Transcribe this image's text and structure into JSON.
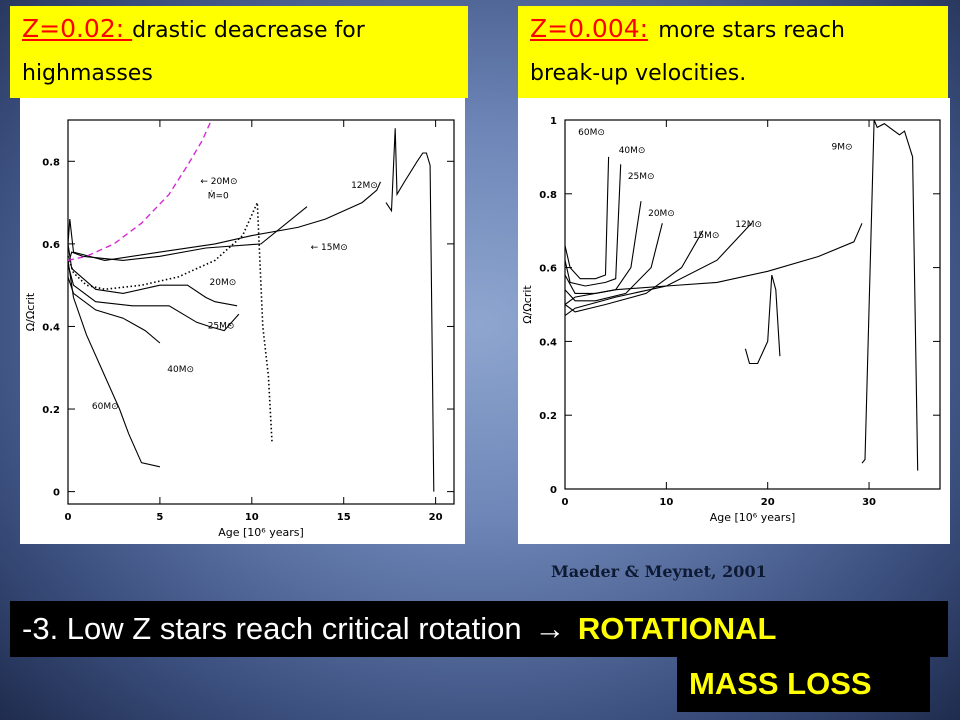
{
  "left_header": {
    "z_label": "Z=0.02: ",
    "desc_line1": "drastic deacrease for",
    "desc_line2": "highmasses"
  },
  "right_header": {
    "z_label": "Z=0.004:",
    "desc_line1": "more stars reach",
    "desc_line2": "break-up velocities."
  },
  "credit": "Maeder  &  Meynet,  2001",
  "banner": {
    "text": "-3. Low Z stars reach critical rotation",
    "arrow": "→",
    "highlight": "ROTATIONAL"
  },
  "bottom": {
    "text": "MASS  LOSS"
  },
  "chart_data": [
    {
      "type": "line",
      "title": "",
      "xlabel": "Age [10⁶ years]",
      "ylabel": "Ω/Ωcrit",
      "xlim": [
        0,
        21
      ],
      "ylim": [
        -0.03,
        0.9
      ],
      "xticks": [
        0,
        5,
        10,
        15,
        20
      ],
      "yticks": [
        0,
        0.2,
        0.4,
        0.6,
        0.8
      ],
      "grid": false,
      "annotations": [
        {
          "text": "← 20M⊙",
          "x": 7.2,
          "y": 0.745
        },
        {
          "text": "Ṁ=0",
          "x": 7.6,
          "y": 0.71
        },
        {
          "text": "12M⊙",
          "x": 15.4,
          "y": 0.735
        },
        {
          "text": "← 15M⊙",
          "x": 13.2,
          "y": 0.585
        },
        {
          "text": "20M⊙",
          "x": 7.7,
          "y": 0.5
        },
        {
          "text": "25M⊙",
          "x": 7.6,
          "y": 0.395
        },
        {
          "text": "40M⊙",
          "x": 5.4,
          "y": 0.29
        },
        {
          "text": "60M⊙",
          "x": 1.3,
          "y": 0.2
        }
      ],
      "series": [
        {
          "style": "solid",
          "x": [
            0,
            0.2,
            0.8,
            3,
            5,
            7.5,
            10.5,
            13
          ],
          "y": [
            0.55,
            0.58,
            0.57,
            0.56,
            0.57,
            0.59,
            0.6,
            0.69
          ]
        },
        {
          "style": "solid",
          "x": [
            0,
            0.1,
            0.3,
            2,
            5,
            8,
            10,
            12.5,
            14,
            16,
            16.8,
            17
          ],
          "y": [
            0.6,
            0.66,
            0.58,
            0.56,
            0.58,
            0.6,
            0.62,
            0.64,
            0.66,
            0.7,
            0.73,
            0.75
          ]
        },
        {
          "style": "solid",
          "x": [
            0,
            0.2,
            1.5,
            3,
            5,
            6.5,
            7.5,
            8,
            9.2
          ],
          "y": [
            0.6,
            0.54,
            0.49,
            0.48,
            0.5,
            0.5,
            0.47,
            0.46,
            0.45
          ]
        },
        {
          "style": "solid",
          "x": [
            0,
            0.3,
            1.5,
            3.5,
            5.5,
            7,
            7.7,
            8.5,
            9.3
          ],
          "y": [
            0.55,
            0.5,
            0.46,
            0.45,
            0.45,
            0.41,
            0.4,
            0.39,
            0.43
          ]
        },
        {
          "style": "solid",
          "x": [
            0,
            0.3,
            1.5,
            3,
            4.2,
            5
          ],
          "y": [
            0.52,
            0.48,
            0.44,
            0.42,
            0.39,
            0.36
          ]
        },
        {
          "style": "solid",
          "x": [
            0,
            0.3,
            1,
            2,
            2.8,
            3.3,
            4,
            5
          ],
          "y": [
            0.56,
            0.47,
            0.38,
            0.28,
            0.2,
            0.14,
            0.07,
            0.06
          ]
        },
        {
          "style": "dotted",
          "x": [
            0,
            0.3,
            1,
            2,
            4,
            6,
            8,
            9.5,
            10.3,
            10.6,
            10.9,
            11.1
          ],
          "y": [
            0.57,
            0.53,
            0.5,
            0.49,
            0.5,
            0.52,
            0.56,
            0.62,
            0.7,
            0.4,
            0.28,
            0.12
          ]
        },
        {
          "style": "dashed",
          "x": [
            0,
            1,
            2.5,
            4,
            5.5,
            6.5,
            7.3,
            7.8
          ],
          "y": [
            0.56,
            0.57,
            0.6,
            0.65,
            0.72,
            0.79,
            0.85,
            0.9
          ]
        },
        {
          "style": "solid",
          "x": [
            17.3,
            17.6,
            17.8,
            17.9,
            18.3,
            19,
            19.3,
            19.5,
            19.7,
            19.9
          ],
          "y": [
            0.7,
            0.68,
            0.88,
            0.72,
            0.75,
            0.8,
            0.82,
            0.82,
            0.79,
            0.0
          ]
        }
      ]
    },
    {
      "type": "line",
      "title": "",
      "xlabel": "Age [10⁶ years]",
      "ylabel": "Ω/Ωcrit",
      "xlim": [
        0,
        37
      ],
      "ylim": [
        0,
        1
      ],
      "xticks": [
        0,
        10,
        20,
        30
      ],
      "yticks": [
        0,
        0.2,
        0.4,
        0.6,
        0.8,
        1
      ],
      "grid": false,
      "annotations": [
        {
          "text": "60M⊙",
          "x": 1.3,
          "y": 0.96
        },
        {
          "text": "40M⊙",
          "x": 5.3,
          "y": 0.91
        },
        {
          "text": "25M⊙",
          "x": 6.2,
          "y": 0.84
        },
        {
          "text": "20M⊙",
          "x": 8.2,
          "y": 0.74
        },
        {
          "text": "15M⊙",
          "x": 12.6,
          "y": 0.68
        },
        {
          "text": "12M⊙",
          "x": 16.8,
          "y": 0.71
        },
        {
          "text": "9M⊙",
          "x": 26.3,
          "y": 0.92
        }
      ],
      "series": [
        {
          "style": "solid",
          "x": [
            0,
            0.5,
            1.5,
            3,
            4,
            4.3
          ],
          "y": [
            0.66,
            0.6,
            0.57,
            0.57,
            0.58,
            0.9
          ]
        },
        {
          "style": "solid",
          "x": [
            0,
            0.5,
            2,
            4,
            5,
            5.5
          ],
          "y": [
            0.62,
            0.56,
            0.55,
            0.56,
            0.57,
            0.88
          ]
        },
        {
          "style": "solid",
          "x": [
            0,
            1,
            3,
            5,
            6.5,
            7.5
          ],
          "y": [
            0.58,
            0.53,
            0.53,
            0.54,
            0.6,
            0.78
          ]
        },
        {
          "style": "solid",
          "x": [
            0,
            1,
            3,
            6,
            8.5,
            9.6
          ],
          "y": [
            0.54,
            0.51,
            0.51,
            0.53,
            0.6,
            0.72
          ]
        },
        {
          "style": "solid",
          "x": [
            0,
            1,
            4,
            8,
            11.5,
            13.6
          ],
          "y": [
            0.5,
            0.48,
            0.5,
            0.53,
            0.6,
            0.7
          ]
        },
        {
          "style": "solid",
          "x": [
            0,
            1,
            5,
            10,
            15,
            18.4
          ],
          "y": [
            0.47,
            0.49,
            0.52,
            0.55,
            0.62,
            0.72
          ]
        },
        {
          "style": "solid",
          "x": [
            0,
            1,
            5,
            10,
            15,
            20,
            25,
            28.5,
            29.3
          ],
          "y": [
            0.5,
            0.52,
            0.54,
            0.55,
            0.56,
            0.59,
            0.63,
            0.67,
            0.72
          ]
        },
        {
          "style": "solid",
          "x": [
            29.3,
            29.6,
            30.5,
            30.8,
            31.5,
            33,
            33.5,
            34.3,
            34.8
          ],
          "y": [
            0.07,
            0.08,
            1.0,
            0.98,
            0.99,
            0.96,
            0.97,
            0.9,
            0.05
          ]
        },
        {
          "style": "solid",
          "x": [
            17.8,
            18.2,
            19,
            20,
            20.4,
            20.8,
            21.2
          ],
          "y": [
            0.38,
            0.34,
            0.34,
            0.4,
            0.58,
            0.54,
            0.36
          ]
        }
      ]
    }
  ]
}
